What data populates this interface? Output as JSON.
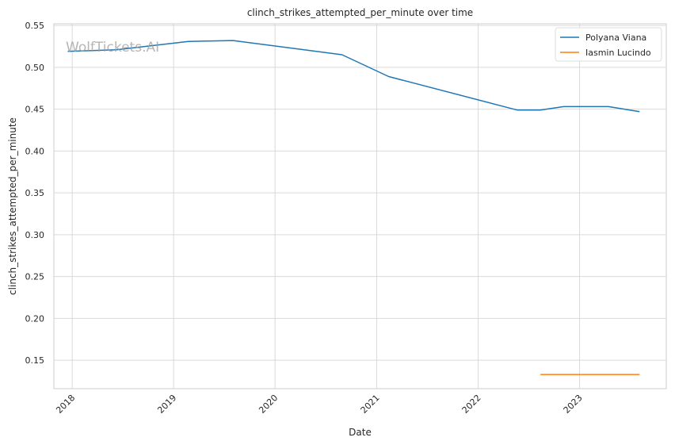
{
  "chart_data": {
    "type": "line",
    "title": "clinch_strikes_attempted_per_minute over time",
    "xlabel": "Date",
    "ylabel": "clinch_strikes_attempted_per_minute",
    "watermark": "WolfTickets.AI",
    "xlim": [
      "2017-10-27",
      "2023-11-09"
    ],
    "ylim": [
      0.116,
      0.552
    ],
    "x_ticks": [
      "2018",
      "2019",
      "2020",
      "2021",
      "2022",
      "2023"
    ],
    "y_ticks": [
      "0.15",
      "0.20",
      "0.25",
      "0.30",
      "0.35",
      "0.40",
      "0.45",
      "0.50",
      "0.55"
    ],
    "grid": true,
    "legend_position": "top-right",
    "series": [
      {
        "name": "Polyana Viana",
        "color": "#1f77b4",
        "points": [
          {
            "x": "2017-12-16",
            "y": 0.519
          },
          {
            "x": "2018-06-09",
            "y": 0.521
          },
          {
            "x": "2019-02-23",
            "y": 0.531
          },
          {
            "x": "2019-08-03",
            "y": 0.532
          },
          {
            "x": "2020-08-29",
            "y": 0.515
          },
          {
            "x": "2021-02-13",
            "y": 0.489
          },
          {
            "x": "2022-05-21",
            "y": 0.449
          },
          {
            "x": "2022-08-13",
            "y": 0.449
          },
          {
            "x": "2022-11-05",
            "y": 0.453
          },
          {
            "x": "2023-04-15",
            "y": 0.453
          },
          {
            "x": "2023-08-05",
            "y": 0.447
          }
        ]
      },
      {
        "name": "Iasmin Lucindo",
        "color": "#ff7f0e",
        "points": [
          {
            "x": "2022-08-13",
            "y": 0.133
          },
          {
            "x": "2023-08-05",
            "y": 0.133
          }
        ]
      }
    ]
  }
}
